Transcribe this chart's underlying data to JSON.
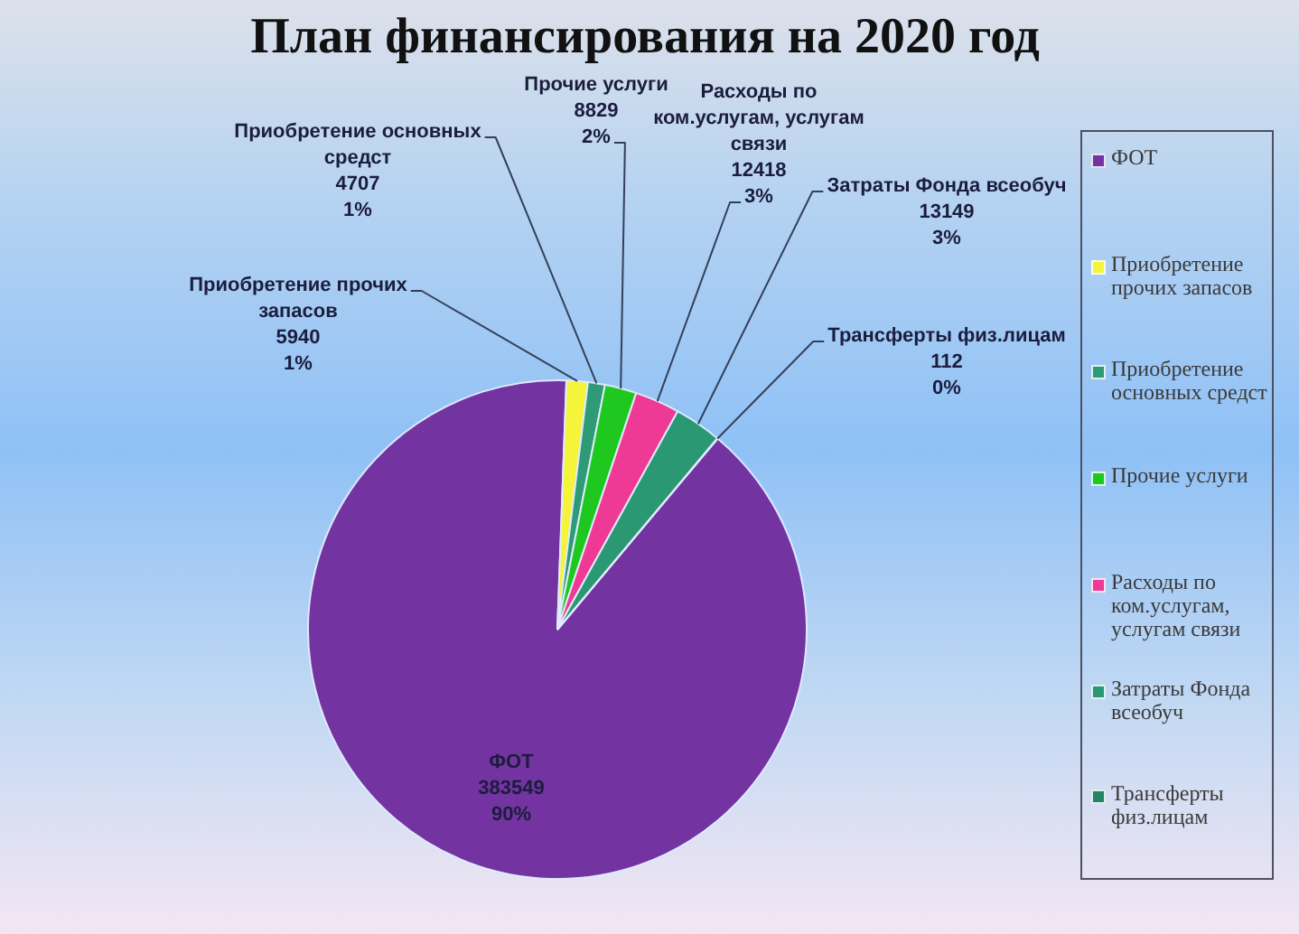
{
  "chart_data": {
    "type": "pie",
    "title": "План финансирования на 2020 год",
    "categories": [
      "ФОТ",
      "Приобретение прочих запасов",
      "Приобретение основных средст",
      "Прочие услуги",
      "Расходы по ком.услугам, услугам связи",
      "Затраты Фонда всеобуч",
      "Трансферты физ.лицам"
    ],
    "values": [
      383549,
      5940,
      4707,
      8829,
      12418,
      13149,
      112
    ],
    "colors": [
      "#7333a1",
      "#f4f43a",
      "#2e9a76",
      "#1fc81f",
      "#ee3a94",
      "#2a9872",
      "#238566"
    ],
    "value_labels": [
      "383549\n90%",
      "5940\n1%",
      "4707\n1%",
      "8829\n2%",
      "12418\n3%",
      "13149\n3%",
      "112\n0%"
    ],
    "legend": "right"
  }
}
